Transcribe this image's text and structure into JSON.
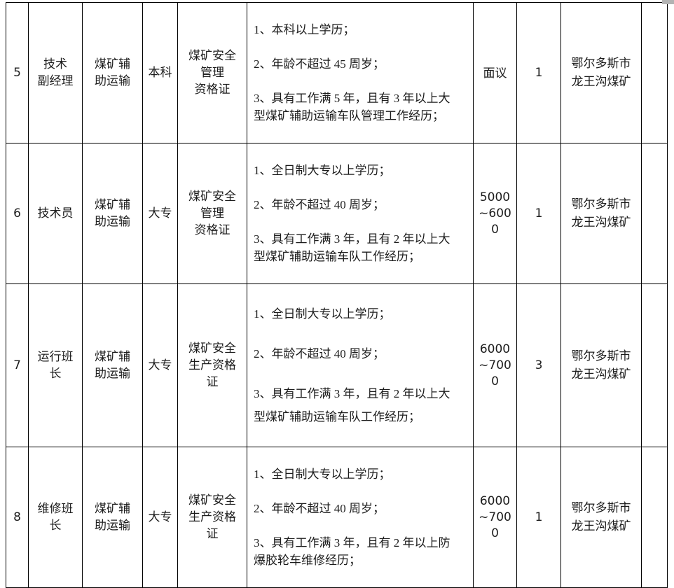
{
  "document": {
    "kind": "recruitment-positions-table",
    "mine_company": "鄂尔多斯市龙王沟煤矿"
  },
  "colors": {
    "background": "#ffffff",
    "border": "#000000",
    "text": "#1c1c1c",
    "scrollbar_fragment": "#b3b3b3"
  },
  "table": {
    "visible_column_roles": [
      "序号",
      "岗位",
      "专业",
      "学历",
      "资格证",
      "任职要求",
      "薪资",
      "人数",
      "工作地点",
      "备注"
    ],
    "rows": [
      {
        "no": "5",
        "position": "技术\n副经理",
        "major": "煤矿辅\n助运输",
        "education": "本科",
        "certificate": "煤矿安全\n管理\n资格证",
        "requirements": [
          "1、本科以上学历；",
          "2、年龄不超过 45 周岁；",
          "3、具有工作满 5 年，且有 3 年以上大\n型煤矿辅助运输车队管理工作经历；"
        ],
        "salary": "面议",
        "headcount": "1",
        "worksite": "鄂尔多斯市\n龙王沟煤矿",
        "extra": ""
      },
      {
        "no": "6",
        "position": "技术员",
        "major": "煤矿辅\n助运输",
        "education": "大专",
        "certificate": "煤矿安全\n管理\n资格证",
        "requirements": [
          "1、全日制大专以上学历；",
          "2、年龄不超过 40 周岁；",
          "3、具有工作满 3 年，且有 2 年以上大\n型煤矿辅助运输车队工作经历；"
        ],
        "salary": "5000\n~600\n0",
        "headcount": "1",
        "worksite": "鄂尔多斯市\n龙王沟煤矿",
        "extra": ""
      },
      {
        "no": "7",
        "position": "运行班\n长",
        "major": "煤矿辅\n助运输",
        "education": "大专",
        "certificate": "煤矿安全\n生产资格\n证",
        "requirements": [
          "1、全日制大专以上学历；",
          "2、年龄不超过 40 周岁；",
          "3、具有工作满 3 年，且有 2 年以上大\n型煤矿辅助运输车队工作经历；"
        ],
        "salary": "6000\n~700\n0",
        "headcount": "3",
        "worksite": "鄂尔多斯市\n龙王沟煤矿",
        "extra": ""
      },
      {
        "no": "8",
        "position": "维修班\n长",
        "major": "煤矿辅\n助运输",
        "education": "大专",
        "certificate": "煤矿安全\n生产资格\n证",
        "requirements": [
          "1、全日制大专以上学历；",
          "2、年龄不超过 40 周岁；",
          "3、具有工作满 3 年，且有 2 年以上防\n爆胶轮车维修经历；"
        ],
        "salary": "6000\n~700\n0",
        "headcount": "1",
        "worksite": "鄂尔多斯市\n龙王沟煤矿",
        "extra": ""
      }
    ]
  }
}
